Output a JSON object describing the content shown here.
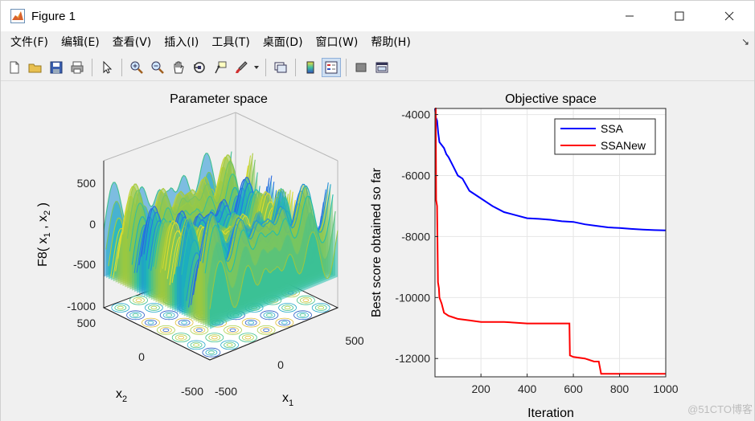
{
  "window": {
    "title": "Figure 1",
    "minimize_icon": "minimize-icon",
    "maximize_icon": "maximize-icon",
    "close_icon": "close-icon"
  },
  "menu": {
    "items": [
      "文件(F)",
      "编辑(E)",
      "查看(V)",
      "插入(I)",
      "工具(T)",
      "桌面(D)",
      "窗口(W)",
      "帮助(H)"
    ],
    "overflow_arrow": "↘"
  },
  "toolbar": {
    "icons": [
      "new-figure-icon",
      "open-file-icon",
      "save-icon",
      "print-icon",
      "pointer-icon",
      "zoom-in-icon",
      "zoom-out-icon",
      "pan-icon",
      "rotate-3d-icon",
      "data-cursor-icon",
      "brush-icon",
      "link-plot-icon",
      "colorbar-icon",
      "legend-icon",
      "hide-plot-tools-icon",
      "show-plot-tools-icon"
    ]
  },
  "colors": {
    "ssa": "#0000ff",
    "ssanew": "#ff0000",
    "grid": "#e0e0e0"
  },
  "watermark": "@51CTO博客",
  "chart_data": [
    {
      "type": "surface",
      "title": "Parameter space",
      "zlabel": "F8( x1 , x2 )",
      "zlabel_parts": {
        "prefix": "F8( x",
        "sub1": "1",
        "mid": " , x",
        "sub2": "2",
        "suffix": " )"
      },
      "xlabel": "x",
      "xlabel_sub": "1",
      "ylabel": "x",
      "ylabel_sub": "2",
      "z_ticks": [
        "500",
        "0",
        "-500",
        "-1000"
      ],
      "x_ticks": [
        "-500",
        "0",
        "500"
      ],
      "y_ticks": [
        "500",
        "0",
        "-500"
      ],
      "zlim": [
        -1000,
        900
      ],
      "xlim": [
        -500,
        500
      ],
      "ylim": [
        -500,
        500
      ]
    },
    {
      "type": "line",
      "title": "Objective space",
      "xlabel": "Iteration",
      "ylabel": "Best score obtained so far",
      "xlim": [
        1,
        1000
      ],
      "ylim": [
        -12600,
        -3800
      ],
      "x_ticks": [
        200,
        400,
        600,
        800,
        1000
      ],
      "x_tick_labels": [
        "200",
        "400",
        "600",
        "800",
        "1000"
      ],
      "y_ticks": [
        -12000,
        -10000,
        -8000,
        -6000,
        -4000
      ],
      "y_tick_labels": [
        "-12000",
        "-10000",
        "-8000",
        "-6000",
        "-4000"
      ],
      "legend_position": "top-right",
      "series": [
        {
          "name": "SSA",
          "color": "#0000ff",
          "x": [
            1,
            5,
            10,
            15,
            20,
            30,
            40,
            50,
            60,
            80,
            100,
            120,
            150,
            200,
            250,
            300,
            350,
            400,
            450,
            500,
            550,
            600,
            650,
            700,
            750,
            800,
            850,
            900,
            950,
            1000
          ],
          "y": [
            -3800,
            -4100,
            -4200,
            -4600,
            -4900,
            -5000,
            -5100,
            -5300,
            -5400,
            -5700,
            -6000,
            -6100,
            -6500,
            -6750,
            -7000,
            -7200,
            -7300,
            -7400,
            -7420,
            -7450,
            -7500,
            -7520,
            -7600,
            -7650,
            -7700,
            -7720,
            -7750,
            -7770,
            -7790,
            -7800
          ]
        },
        {
          "name": "SSANew",
          "color": "#ff0000",
          "x": [
            1,
            4,
            6,
            10,
            14,
            18,
            20,
            30,
            40,
            60,
            80,
            100,
            150,
            200,
            300,
            400,
            500,
            583,
            585,
            600,
            650,
            690,
            700,
            710,
            720,
            750,
            800,
            900,
            1000
          ],
          "y": [
            -3800,
            -3800,
            -6800,
            -7000,
            -9500,
            -9700,
            -10000,
            -10200,
            -10500,
            -10600,
            -10650,
            -10700,
            -10750,
            -10800,
            -10800,
            -10850,
            -10850,
            -10850,
            -11900,
            -11950,
            -12000,
            -12100,
            -12100,
            -12100,
            -12500,
            -12500,
            -12500,
            -12500,
            -12500
          ]
        }
      ]
    }
  ]
}
